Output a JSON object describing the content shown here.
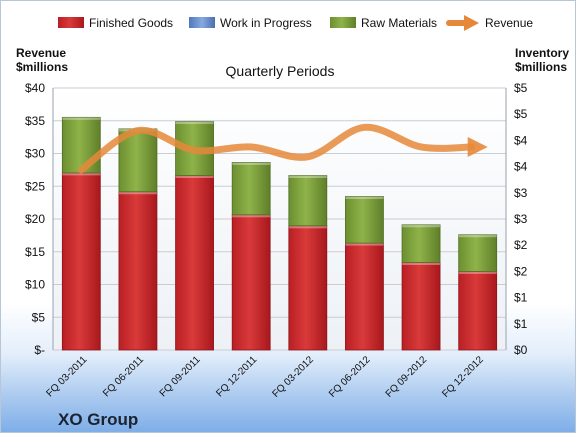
{
  "chart_data": {
    "type": "bar",
    "stacked": true,
    "title": "Quarterly Periods",
    "company": "XO Group",
    "categories": [
      "FQ 03-2011",
      "FQ 06-2011",
      "FQ 09-2011",
      "FQ 12-2011",
      "FQ 03-2012",
      "FQ 06-2012",
      "FQ 09-2012",
      "FQ 12-2012"
    ],
    "y_left": {
      "label_line1": "Revenue",
      "label_line2": "$millions",
      "ylim": [
        0,
        40
      ],
      "ticks": [
        "$-",
        "$5",
        "$10",
        "$15",
        "$20",
        "$25",
        "$30",
        "$35",
        "$40"
      ]
    },
    "y_right": {
      "label_line1": "Inventory",
      "label_line2": "$millions",
      "ylim": [
        0,
        5
      ],
      "ticks": [
        "$0",
        "$1",
        "$1",
        "$2",
        "$2",
        "$3",
        "$3",
        "$4",
        "$4",
        "$5",
        "$5"
      ]
    },
    "series": [
      {
        "name": "Finished Goods",
        "axis": "right",
        "color": "#cc2b2b",
        "values": [
          3.38,
          3.02,
          3.33,
          2.58,
          2.37,
          2.04,
          1.67,
          1.5
        ]
      },
      {
        "name": "Work in Progress",
        "axis": "right",
        "color": "#6f93cf",
        "values": [
          0,
          0,
          0,
          0,
          0,
          0,
          0,
          0
        ]
      },
      {
        "name": "Raw Materials",
        "axis": "right",
        "color": "#7fa13c",
        "values": [
          1.06,
          1.2,
          1.03,
          1.0,
          0.96,
          0.89,
          0.72,
          0.7
        ]
      },
      {
        "name": "Revenue",
        "axis": "left",
        "type": "line",
        "color": "#e6883a",
        "values": [
          27.5,
          33.5,
          30.5,
          31.0,
          29.5,
          34.0,
          31.0,
          31.0
        ]
      }
    ],
    "legend_position": "top",
    "grid": true
  }
}
